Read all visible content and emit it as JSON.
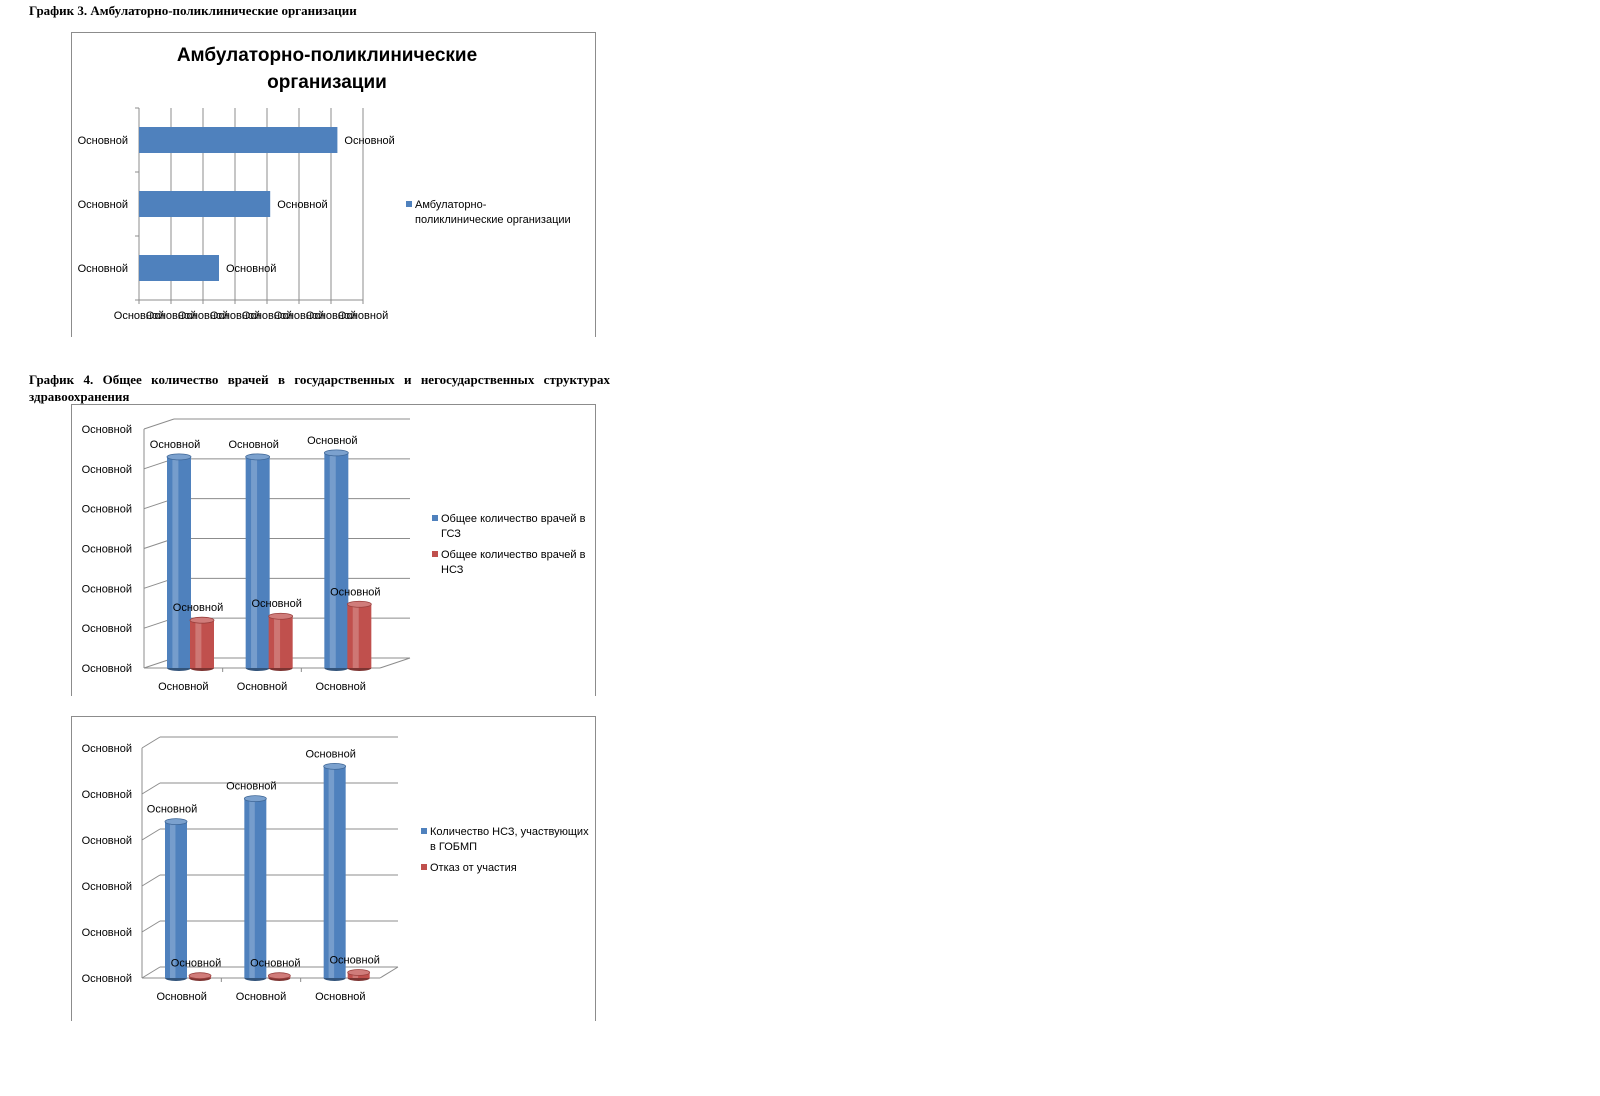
{
  "captions": {
    "chart3": "График 3. Амбулаторно-поликлинические организации",
    "chart4": "График 4. Общее количество врачей в государственных и негосударственных структурах здравоохранения"
  },
  "chart_data": [
    {
      "type": "bar",
      "orientation": "horizontal",
      "title": "Амбулаторно-поликлинические организации",
      "title_lines": [
        "Амбулаторно-поликлинические",
        "организации"
      ],
      "categories": [
        "Основной",
        "Основной",
        "Основной"
      ],
      "series": [
        {
          "name": "Амбулаторно-поликлинические организации",
          "legend_lines": [
            "Амбулаторно-",
            "поликлинические организации"
          ],
          "color": "#4f81bd",
          "values": [
            2.5,
            4.1,
            6.2
          ],
          "data_labels": [
            "Основной",
            "Основной",
            "Основной"
          ]
        }
      ],
      "x_tick_labels": [
        "Основной",
        "Основной",
        "Основной",
        "Основной",
        "Основной",
        "Основной",
        "Основной",
        "Основной"
      ],
      "xlim": [
        0,
        7
      ],
      "grid": true,
      "legend_position": "right"
    },
    {
      "type": "bar",
      "style": "3d-cylinder",
      "title": "",
      "categories": [
        "Основной",
        "Основной",
        "Основной"
      ],
      "series": [
        {
          "name": "Общее количество врачей в ГСЗ",
          "legend_lines": [
            "Общее количество врачей в",
            "ГСЗ"
          ],
          "color": "#4f81bd",
          "values": [
            5.3,
            5.3,
            5.4
          ],
          "data_labels": [
            "Основной",
            "Основной",
            "Основной"
          ]
        },
        {
          "name": "Общее количество врачей в НСЗ",
          "legend_lines": [
            "Общее количество врачей в",
            "НСЗ"
          ],
          "color": "#c0504d",
          "values": [
            1.2,
            1.3,
            1.6
          ],
          "data_labels": [
            "Основной",
            "Основной",
            "Основной"
          ]
        }
      ],
      "y_tick_labels": [
        "Основной",
        "Основной",
        "Основной",
        "Основной",
        "Основной",
        "Основной",
        "Основной"
      ],
      "ylim": [
        0,
        6
      ],
      "grid": true,
      "legend_position": "right"
    },
    {
      "type": "bar",
      "style": "3d-cylinder",
      "title": "",
      "categories": [
        "Основной",
        "Основной",
        "Основной"
      ],
      "series": [
        {
          "name": "Количество НСЗ, участвующих в ГОБМП",
          "legend_lines": [
            "Количество НСЗ, участвующих",
            "в ГОБМП"
          ],
          "color": "#4f81bd",
          "values": [
            3.4,
            3.9,
            4.6
          ],
          "data_labels": [
            "Основной",
            "Основной",
            "Основной"
          ]
        },
        {
          "name": "Отказ от участия",
          "legend_lines": [
            "Отказ от участия"
          ],
          "color": "#c0504d",
          "values": [
            0.05,
            0.05,
            0.12
          ],
          "data_labels": [
            "Основной",
            "Основной",
            "Основной"
          ]
        }
      ],
      "y_tick_labels": [
        "Основной",
        "Основной",
        "Основной",
        "Основной",
        "Основной",
        "Основной"
      ],
      "ylim": [
        0,
        5
      ],
      "grid": true,
      "legend_position": "right"
    }
  ]
}
